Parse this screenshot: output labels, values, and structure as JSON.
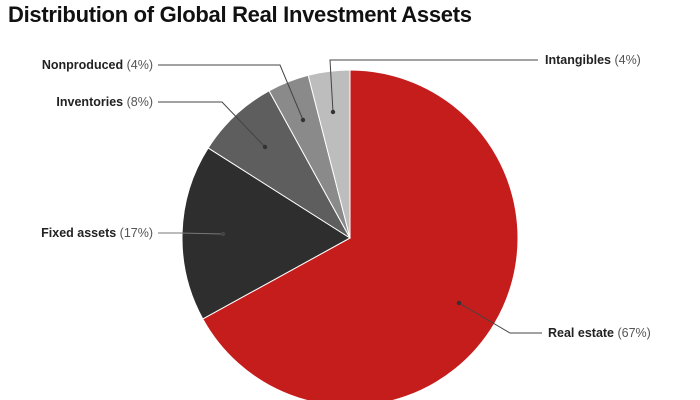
{
  "chart_data": {
    "type": "pie",
    "title": "Distribution of Global Real Investment Assets",
    "start": "top",
    "direction": "clockwise",
    "slices": [
      {
        "label": "Real estate",
        "percent_label": "(67%)",
        "value": 67,
        "color": "#c51c1c"
      },
      {
        "label": "Fixed assets",
        "percent_label": "(17%)",
        "value": 17,
        "color": "#2e2e2e"
      },
      {
        "label": "Inventories",
        "percent_label": "(8%)",
        "value": 8,
        "color": "#5e5e5e"
      },
      {
        "label": "Nonproduced",
        "percent_label": "(4%)",
        "value": 4,
        "color": "#8a8a8a"
      },
      {
        "label": "Intangibles",
        "percent_label": "(4%)",
        "value": 4,
        "color": "#bdbdbd"
      }
    ],
    "legend": "none"
  }
}
